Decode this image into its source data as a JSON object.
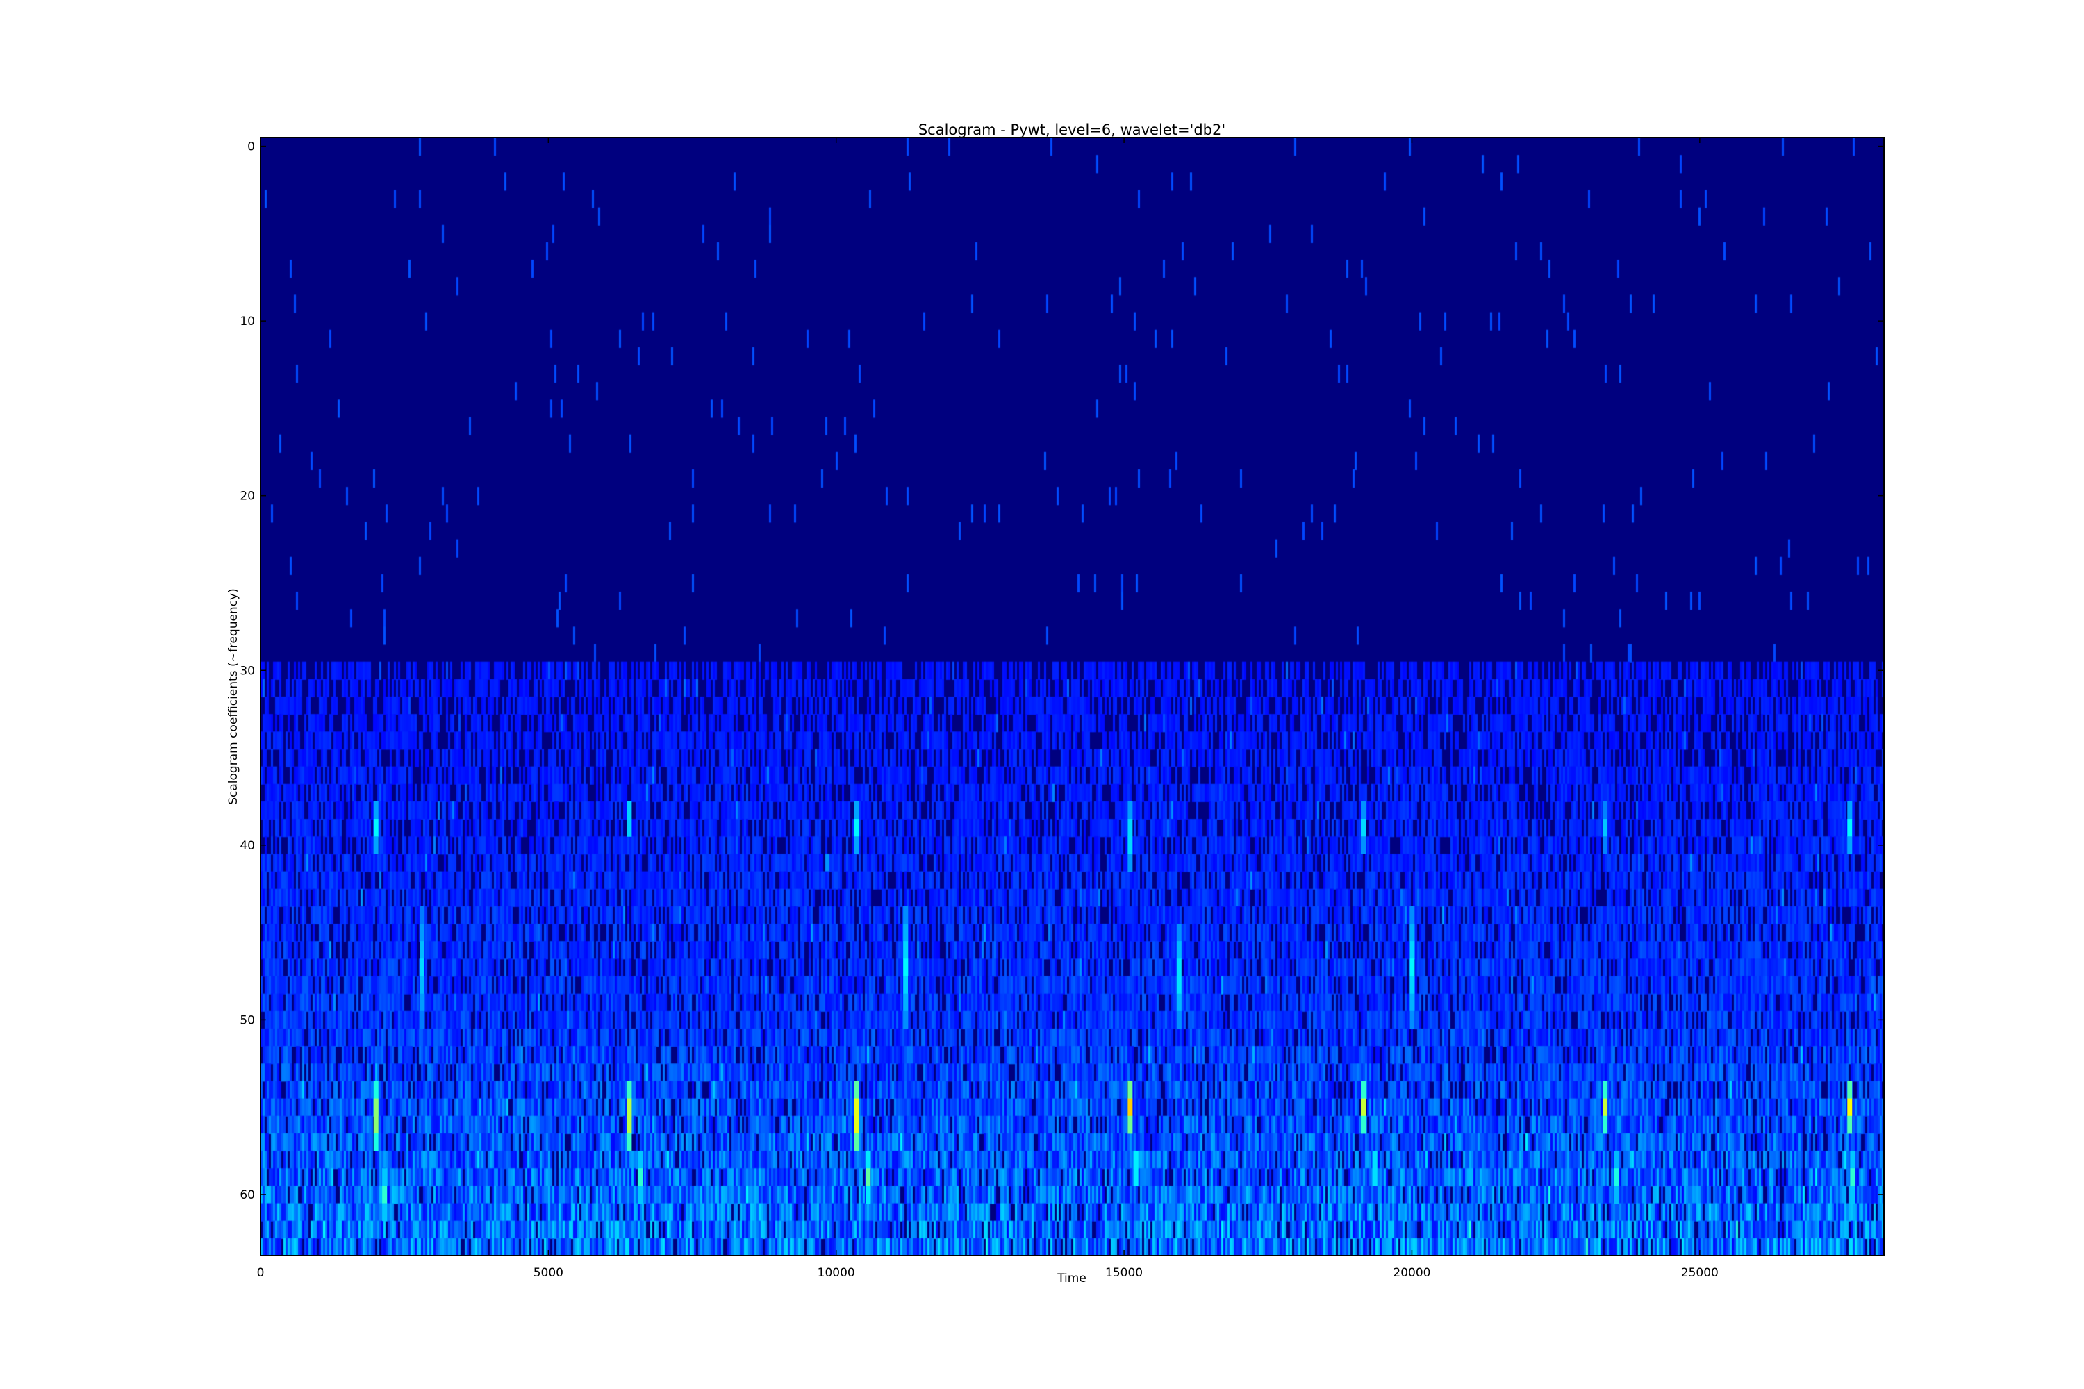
{
  "chart_data": {
    "type": "heatmap",
    "title": "Scalogram - Pywt, level=6, wavelet='db2'",
    "xlabel": "Time",
    "ylabel": "Scalogram coefficients (~frequency)",
    "xlim": [
      0,
      28200
    ],
    "ylim": [
      63.5,
      -0.5
    ],
    "y_inverted": true,
    "rows": 64,
    "colormap": "jet",
    "background_color": "#00007f",
    "grid": false,
    "xticks": [
      0,
      5000,
      10000,
      15000,
      20000,
      25000
    ],
    "xtick_labels": [
      "0",
      "5000",
      "10000",
      "15000",
      "20000",
      "25000"
    ],
    "yticks": [
      0,
      10,
      20,
      30,
      40,
      50,
      60
    ],
    "ytick_labels": [
      "0",
      "10",
      "20",
      "30",
      "40",
      "50",
      "60"
    ],
    "events": [
      {
        "time": 2000,
        "row_start": 54,
        "row_end": 57,
        "value": 0.45
      },
      {
        "time": 2000,
        "row_start": 38,
        "row_end": 40,
        "value": 0.25
      },
      {
        "time": 2150,
        "row_start": 59,
        "row_end": 61,
        "value": 0.3
      },
      {
        "time": 2800,
        "row_start": 44,
        "row_end": 50,
        "value": 0.22
      },
      {
        "time": 6400,
        "row_start": 54,
        "row_end": 57,
        "value": 0.5
      },
      {
        "time": 6400,
        "row_start": 38,
        "row_end": 39,
        "value": 0.28
      },
      {
        "time": 6600,
        "row_start": 58,
        "row_end": 60,
        "value": 0.3
      },
      {
        "time": 10350,
        "row_start": 54,
        "row_end": 57,
        "value": 0.55
      },
      {
        "time": 10350,
        "row_start": 38,
        "row_end": 40,
        "value": 0.25
      },
      {
        "time": 10550,
        "row_start": 58,
        "row_end": 60,
        "value": 0.35
      },
      {
        "time": 11200,
        "row_start": 44,
        "row_end": 50,
        "value": 0.25
      },
      {
        "time": 15100,
        "row_start": 54,
        "row_end": 56,
        "value": 0.55
      },
      {
        "time": 15100,
        "row_start": 38,
        "row_end": 41,
        "value": 0.25
      },
      {
        "time": 15200,
        "row_start": 58,
        "row_end": 59,
        "value": 0.32
      },
      {
        "time": 15950,
        "row_start": 45,
        "row_end": 50,
        "value": 0.25
      },
      {
        "time": 19150,
        "row_start": 54,
        "row_end": 56,
        "value": 0.45
      },
      {
        "time": 19150,
        "row_start": 38,
        "row_end": 40,
        "value": 0.22
      },
      {
        "time": 19350,
        "row_start": 58,
        "row_end": 59,
        "value": 0.3
      },
      {
        "time": 20000,
        "row_start": 44,
        "row_end": 50,
        "value": 0.25
      },
      {
        "time": 23350,
        "row_start": 54,
        "row_end": 56,
        "value": 0.45
      },
      {
        "time": 23350,
        "row_start": 38,
        "row_end": 40,
        "value": 0.2
      },
      {
        "time": 23550,
        "row_start": 58,
        "row_end": 60,
        "value": 0.28
      },
      {
        "time": 27600,
        "row_start": 54,
        "row_end": 56,
        "value": 0.5
      },
      {
        "time": 27600,
        "row_start": 38,
        "row_end": 40,
        "value": 0.25
      },
      {
        "time": 27650,
        "row_start": 58,
        "row_end": 60,
        "value": 0.3
      }
    ]
  }
}
